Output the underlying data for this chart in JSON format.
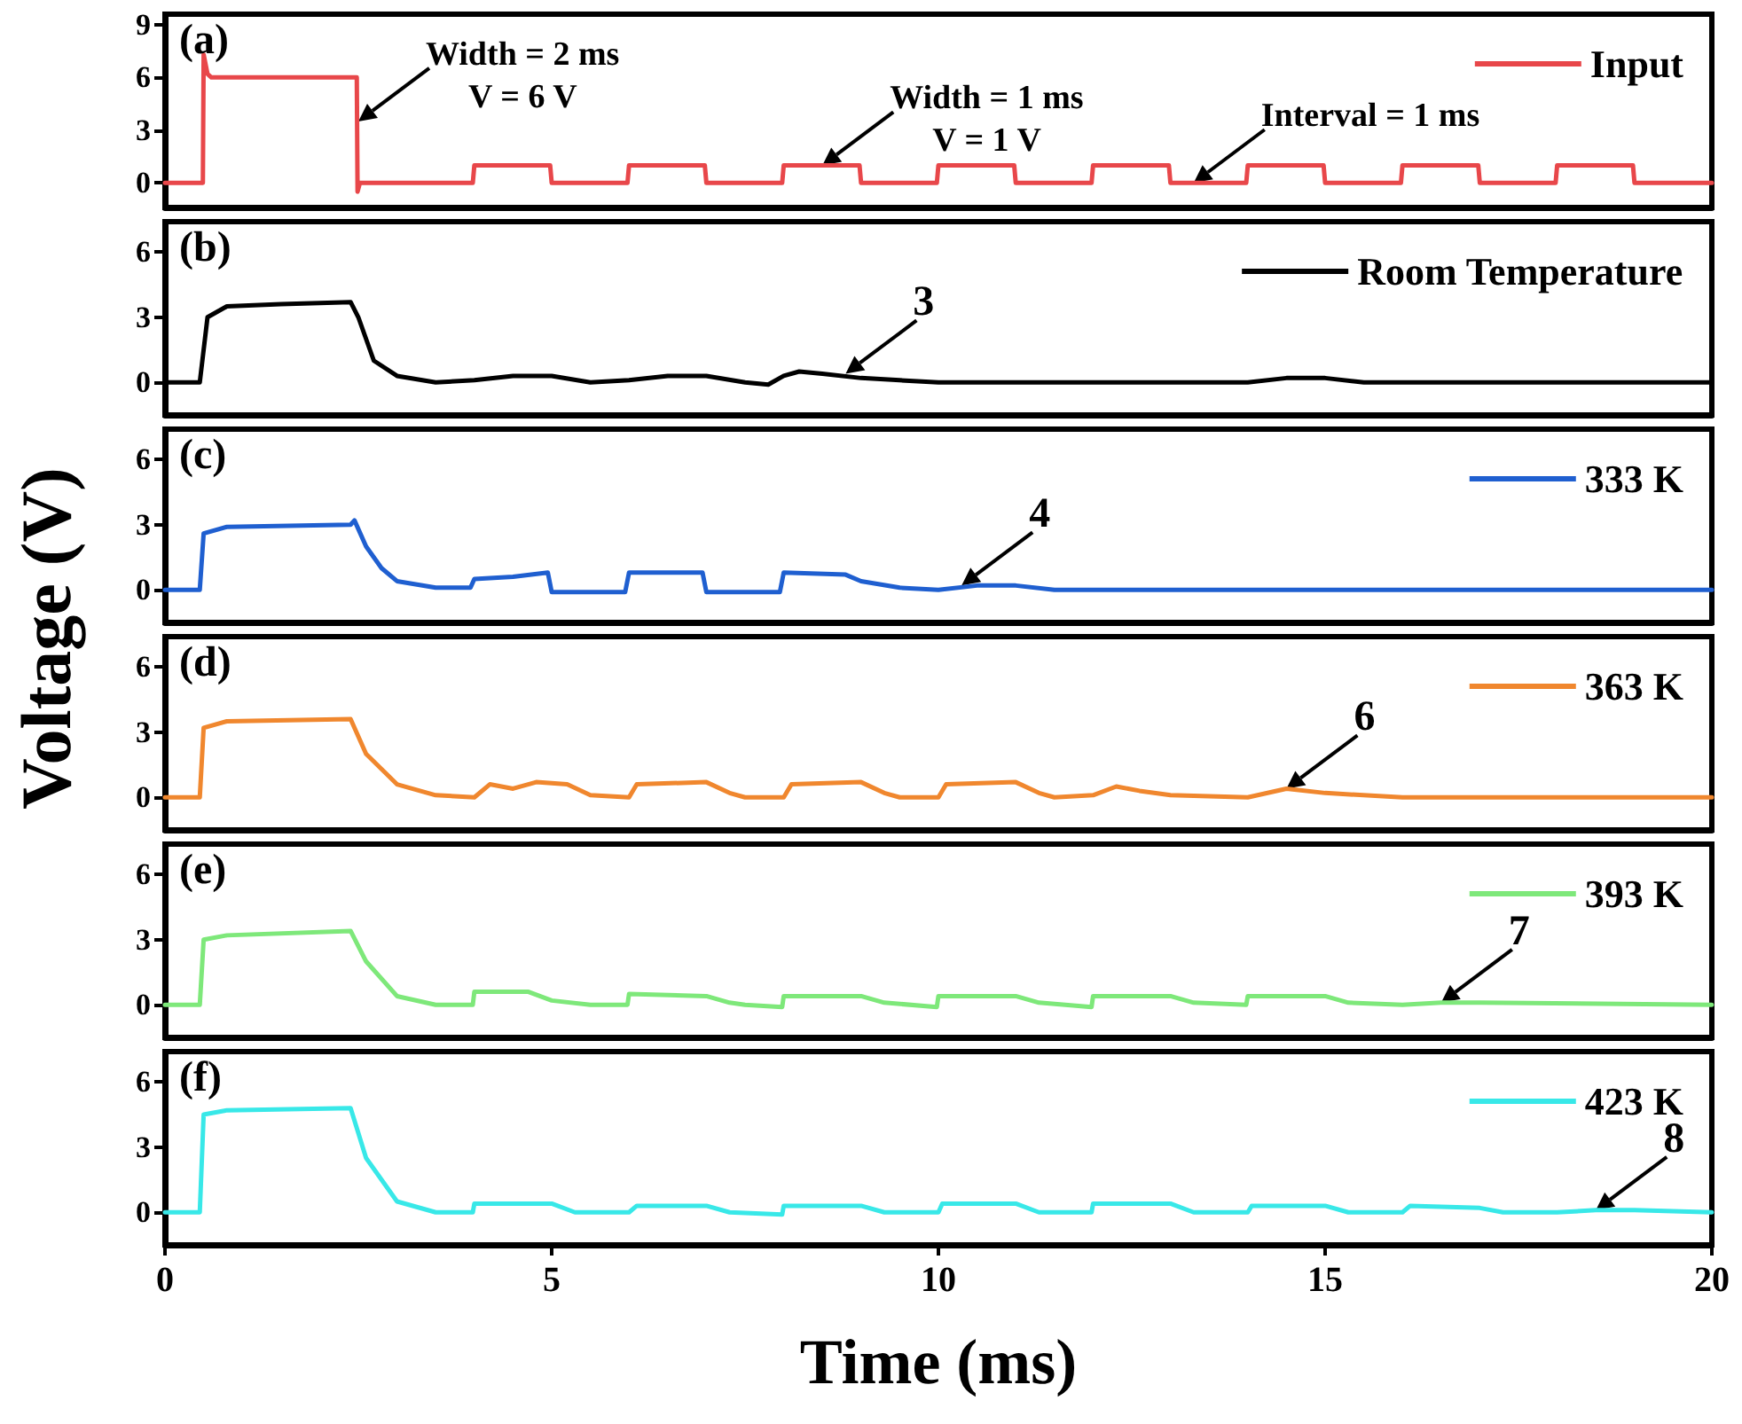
{
  "chart_data": [
    {
      "type": "line",
      "title": "(a)",
      "ylabel": "Voltage (V)",
      "xlim": [
        0,
        20
      ],
      "ylim": [
        -1.4,
        9.6
      ],
      "yticks": [
        0,
        3,
        6,
        9
      ],
      "tick_labels": "y",
      "legend": "top right",
      "grid": false,
      "series": [
        {
          "name": "Input",
          "color": "#e8474a",
          "x": [
            0,
            0.49,
            0.5,
            0.55,
            0.6,
            2.48,
            2.49,
            2.52,
            2.6,
            3.98,
            4,
            4.98,
            5,
            5.98,
            6,
            6.98,
            7,
            7.98,
            8,
            8.98,
            9,
            9.98,
            10,
            10.98,
            11,
            11.98,
            12,
            12.98,
            13,
            13.98,
            14,
            14.98,
            15,
            15.98,
            16,
            16.98,
            17,
            17.98,
            18,
            18.98,
            19,
            20
          ],
          "values": [
            0,
            0,
            7.3,
            6.2,
            6,
            6,
            -0.5,
            0,
            0,
            0,
            1,
            1,
            0,
            0,
            1,
            1,
            0,
            0,
            1,
            1,
            0,
            0,
            1,
            1,
            0,
            0,
            1,
            1,
            0,
            0,
            1,
            1,
            0,
            0,
            1,
            1,
            0,
            0,
            1,
            1,
            0,
            0
          ]
        }
      ],
      "annotations": [
        {
          "text": "Width = 2 ms",
          "x": 2.5,
          "y": 3.5
        },
        "V = 6 V",
        {
          "text": "Width = 1 ms",
          "x": 8.5,
          "y": 1
        },
        "V = 1 V",
        {
          "text": "Interval = 1 ms",
          "x": 13.3,
          "y": 0
        }
      ]
    },
    {
      "type": "line",
      "title": "(b)",
      "xlim": [
        0,
        20
      ],
      "ylim": [
        -1.5,
        7.4
      ],
      "yticks": [
        0,
        3,
        6
      ],
      "tick_labels": "y",
      "legend": "top right",
      "grid": false,
      "series": [
        {
          "name": "Room Temperature",
          "color": "#000000",
          "x": [
            0,
            0.45,
            0.55,
            0.8,
            1.5,
            2.4,
            2.5,
            2.7,
            3,
            3.5,
            4,
            4.5,
            5,
            5.5,
            6,
            6.5,
            7,
            7.5,
            7.8,
            8,
            8.2,
            8.5,
            9,
            9.5,
            10,
            14,
            14.5,
            15,
            15.5,
            20
          ],
          "values": [
            0,
            0,
            3,
            3.5,
            3.6,
            3.7,
            3,
            1,
            0.3,
            0,
            0.1,
            0.3,
            0.3,
            0,
            0.1,
            0.3,
            0.3,
            0,
            -0.1,
            0.3,
            0.5,
            0.4,
            0.2,
            0.1,
            0,
            0,
            0.2,
            0.2,
            0,
            0
          ]
        }
      ],
      "annotations": [
        {
          "text": "3",
          "x": 8.8,
          "y": 0.4
        }
      ]
    },
    {
      "type": "line",
      "title": "(c)",
      "xlim": [
        0,
        20
      ],
      "ylim": [
        -1.5,
        7.4
      ],
      "yticks": [
        0,
        3,
        6
      ],
      "tick_labels": "y",
      "legend": "top right",
      "grid": false,
      "series": [
        {
          "name": "333 K",
          "color": "#1f5fd0",
          "x": [
            0,
            0.45,
            0.5,
            0.8,
            2.4,
            2.45,
            2.6,
            2.8,
            3,
            3.5,
            3.95,
            4,
            4.5,
            4.95,
            5,
            5.95,
            6,
            6.95,
            7,
            7.95,
            8,
            8.8,
            9,
            9.5,
            10,
            10.5,
            11,
            11.5,
            20
          ],
          "values": [
            0,
            0,
            2.6,
            2.9,
            3,
            3.2,
            2,
            1,
            0.4,
            0.1,
            0.1,
            0.5,
            0.6,
            0.8,
            -0.1,
            -0.1,
            0.8,
            0.8,
            -0.1,
            -0.1,
            0.8,
            0.7,
            0.4,
            0.1,
            0,
            0.2,
            0.2,
            0,
            0
          ]
        }
      ],
      "annotations": [
        {
          "text": "4",
          "x": 10.3,
          "y": 0.2
        }
      ]
    },
    {
      "type": "line",
      "title": "(d)",
      "xlim": [
        0,
        20
      ],
      "ylim": [
        -1.5,
        7.4
      ],
      "yticks": [
        0,
        3,
        6
      ],
      "tick_labels": "y",
      "legend": "top right",
      "grid": false,
      "series": [
        {
          "name": "363 K",
          "color": "#f0872e",
          "x": [
            0,
            0.45,
            0.5,
            0.8,
            2.4,
            2.6,
            3,
            3.5,
            4,
            4.2,
            4.5,
            4.8,
            5.2,
            5.5,
            6,
            6.1,
            7,
            7.3,
            7.5,
            8,
            8.1,
            9,
            9.3,
            9.5,
            10,
            10.1,
            11,
            11.3,
            11.5,
            12,
            12.3,
            12.6,
            13,
            14,
            14.5,
            15,
            16,
            20
          ],
          "values": [
            0,
            0,
            3.2,
            3.5,
            3.6,
            2,
            0.6,
            0.1,
            0,
            0.6,
            0.4,
            0.7,
            0.6,
            0.1,
            0,
            0.6,
            0.7,
            0.2,
            0,
            0,
            0.6,
            0.7,
            0.2,
            0,
            0,
            0.6,
            0.7,
            0.2,
            0,
            0.1,
            0.5,
            0.3,
            0.1,
            0,
            0.4,
            0.2,
            0,
            0
          ]
        }
      ],
      "annotations": [
        {
          "text": "6",
          "x": 14.5,
          "y": 0.4
        }
      ]
    },
    {
      "type": "line",
      "title": "(e)",
      "xlim": [
        0,
        20
      ],
      "ylim": [
        -1.5,
        7.4
      ],
      "yticks": [
        0,
        3,
        6
      ],
      "tick_labels": "y",
      "legend": "top right",
      "grid": false,
      "series": [
        {
          "name": "393 K",
          "color": "#7ee87a",
          "x": [
            0,
            0.45,
            0.5,
            0.8,
            2.4,
            2.6,
            3,
            3.5,
            3.98,
            4,
            4.7,
            5,
            5.5,
            5.98,
            6,
            7,
            7.3,
            7.5,
            7.98,
            8,
            9,
            9.3,
            9.98,
            10,
            11,
            11.3,
            11.98,
            12,
            13,
            13.3,
            13.98,
            14,
            15,
            15.3,
            16,
            16.5,
            17,
            20
          ],
          "values": [
            0,
            0,
            3,
            3.2,
            3.4,
            2,
            0.4,
            0,
            0,
            0.6,
            0.6,
            0.2,
            0,
            0,
            0.5,
            0.4,
            0.1,
            0,
            -0.1,
            0.4,
            0.4,
            0.1,
            -0.1,
            0.4,
            0.4,
            0.1,
            -0.1,
            0.4,
            0.4,
            0.1,
            0,
            0.4,
            0.4,
            0.1,
            0,
            0.1,
            0.1,
            0
          ]
        }
      ],
      "annotations": [
        {
          "text": "7",
          "x": 16.5,
          "y": 0.1
        }
      ]
    },
    {
      "type": "line",
      "title": "(f)",
      "xlabel": "Time (ms)",
      "xlim": [
        0,
        20
      ],
      "xticks": [
        0,
        5,
        10,
        15,
        20
      ],
      "ylim": [
        -1.5,
        7.4
      ],
      "yticks": [
        0,
        3,
        6
      ],
      "legend": "top right",
      "grid": false,
      "series": [
        {
          "name": "423 K",
          "color": "#38e8e8",
          "x": [
            0,
            0.45,
            0.5,
            0.8,
            2.4,
            2.6,
            3,
            3.5,
            3.98,
            4,
            5,
            5.3,
            6,
            6.1,
            7,
            7.3,
            7.98,
            8,
            9,
            9.3,
            10,
            10.05,
            11,
            11.3,
            11.98,
            12,
            13,
            13.3,
            14,
            14.05,
            15,
            15.3,
            16,
            16.1,
            17,
            17.3,
            18,
            18.5,
            19,
            20
          ],
          "values": [
            0,
            0,
            4.5,
            4.7,
            4.8,
            2.5,
            0.5,
            0,
            0,
            0.4,
            0.4,
            0,
            0,
            0.3,
            0.3,
            0,
            -0.1,
            0.3,
            0.3,
            0,
            0,
            0.4,
            0.4,
            0,
            0,
            0.4,
            0.4,
            0,
            0,
            0.3,
            0.3,
            0,
            0,
            0.3,
            0.2,
            0,
            0,
            0.1,
            0.1,
            0
          ]
        }
      ],
      "annotations": [
        {
          "text": "8",
          "x": 18.5,
          "y": 0.1
        }
      ]
    }
  ]
}
